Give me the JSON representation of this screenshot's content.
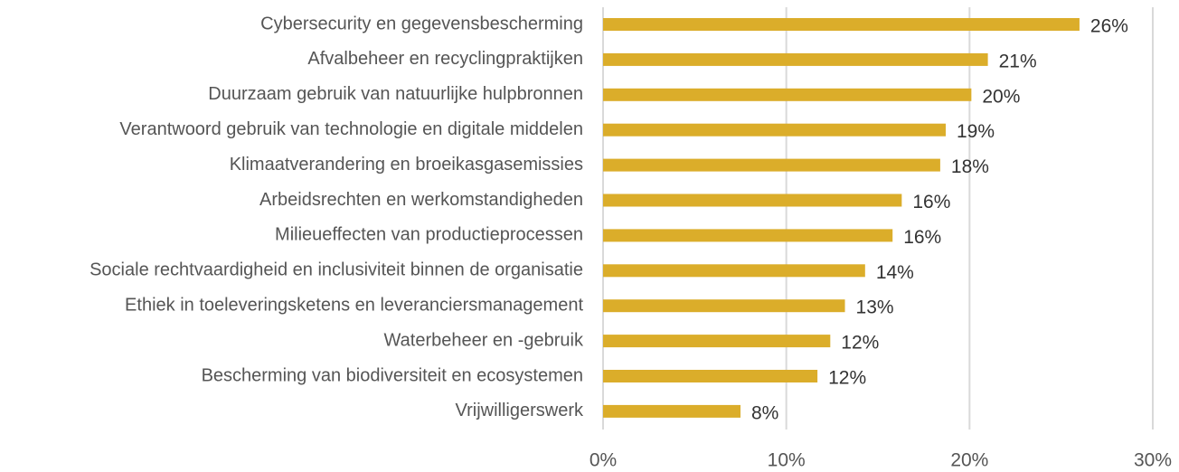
{
  "chart_data": {
    "type": "bar",
    "orientation": "horizontal",
    "categories": [
      "Cybersecurity en gegevensbescherming",
      "Afvalbeheer en recyclingpraktijken",
      "Duurzaam gebruik van natuurlijke hulpbronnen",
      "Verantwoord gebruik van technologie en digitale middelen",
      "Klimaatverandering en broeikasgasemissies",
      "Arbeidsrechten en werkomstandigheden",
      "Milieueffecten van productieprocessen",
      "Sociale rechtvaardigheid en inclusiviteit binnen de organisatie",
      "Ethiek in toeleveringsketens en leveranciersmanagement",
      "Waterbeheer en -gebruik",
      "Bescherming van biodiversiteit en ecosystemen",
      "Vrijwilligerswerk"
    ],
    "values": [
      26.0,
      21.0,
      20.1,
      18.7,
      18.4,
      16.3,
      15.8,
      14.3,
      13.2,
      12.4,
      11.7,
      7.5
    ],
    "value_labels": [
      "26%",
      "21%",
      "20%",
      "19%",
      "18%",
      "16%",
      "16%",
      "14%",
      "13%",
      "12%",
      "12%",
      "8%"
    ],
    "color": "#dbad2a",
    "xlim": [
      0,
      30
    ],
    "xticks": [
      {
        "value": 0,
        "label": "0%"
      },
      {
        "value": 10,
        "label": "10%"
      },
      {
        "value": 20,
        "label": "20%"
      },
      {
        "value": 30,
        "label": "30%"
      }
    ],
    "grid": true
  }
}
